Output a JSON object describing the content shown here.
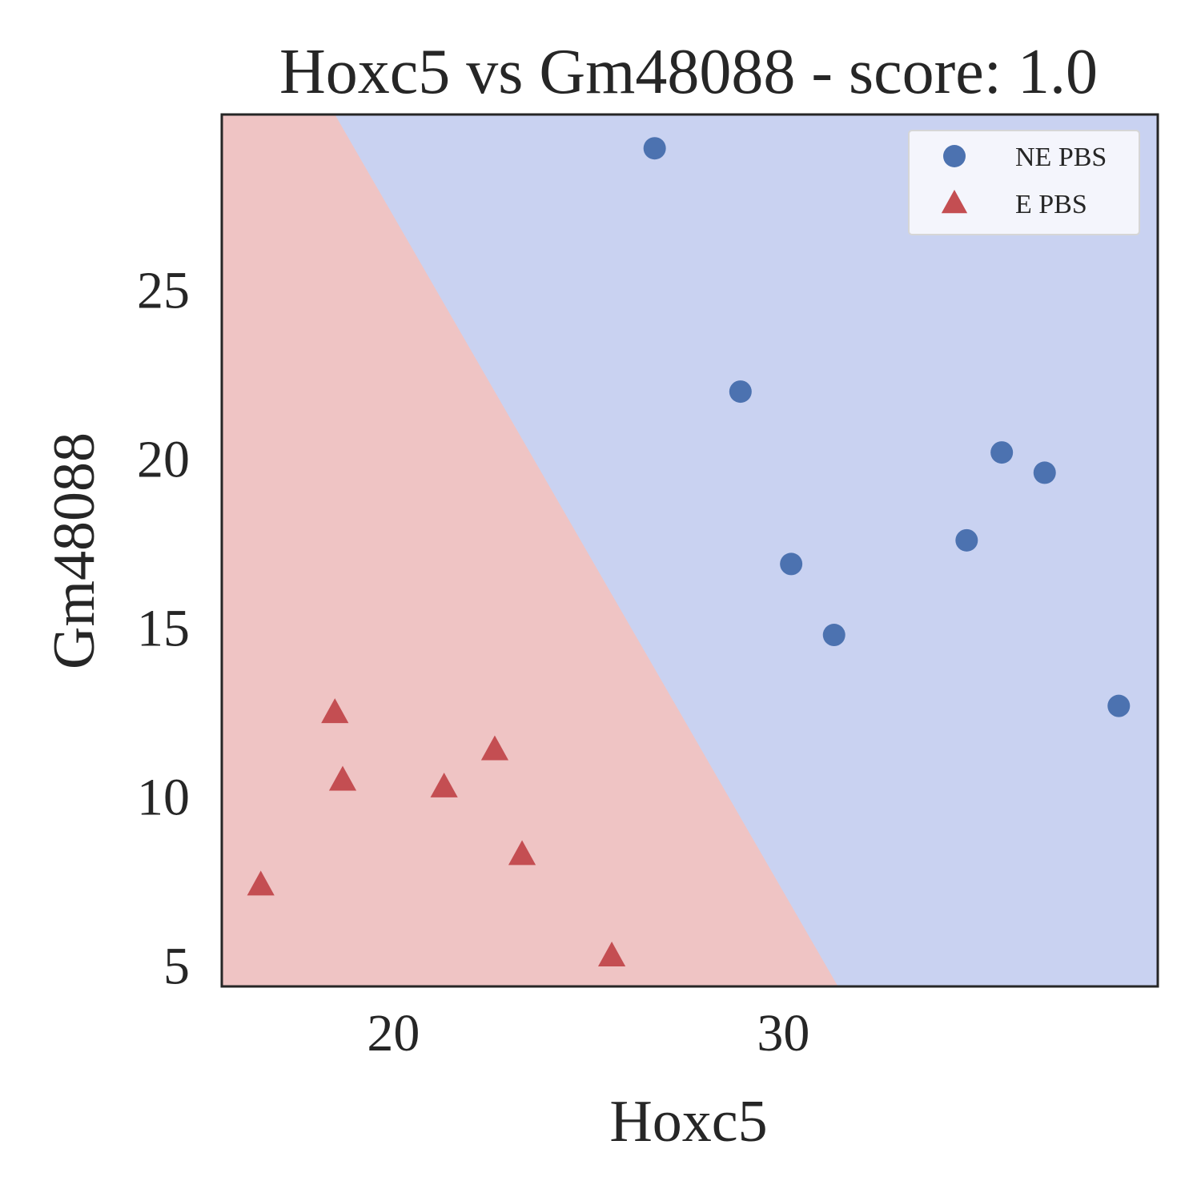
{
  "chart_data": {
    "type": "scatter",
    "title": "Hoxc5 vs Gm48088 - score: 1.0",
    "xlabel": "Hoxc5",
    "ylabel": "Gm48088",
    "xlim": [
      15.6,
      39.6
    ],
    "ylim": [
      4.4,
      30.2
    ],
    "xticks": [
      20,
      30
    ],
    "yticks": [
      5,
      10,
      15,
      20,
      25
    ],
    "grid": false,
    "legend_position": "top-right",
    "decision_boundary": {
      "line": [
        [
          18.5,
          30.2
        ],
        [
          31.4,
          4.4
        ]
      ],
      "left_region_class": "E PBS",
      "right_region_class": "NE PBS",
      "left_region_color": "#efc4c4",
      "right_region_color": "#c9d2f1"
    },
    "series": [
      {
        "name": "NE PBS",
        "marker": "circle",
        "color": "#4c72b0",
        "points": [
          [
            26.7,
            29.2
          ],
          [
            28.9,
            22.0
          ],
          [
            30.2,
            16.9
          ],
          [
            31.3,
            14.8
          ],
          [
            34.7,
            17.6
          ],
          [
            35.6,
            20.2
          ],
          [
            36.7,
            19.6
          ],
          [
            38.6,
            12.7
          ]
        ]
      },
      {
        "name": "E PBS",
        "marker": "triangle",
        "color": "#c44e52",
        "points": [
          [
            16.6,
            7.4
          ],
          [
            18.5,
            12.5
          ],
          [
            18.7,
            10.5
          ],
          [
            21.3,
            10.3
          ],
          [
            22.6,
            11.4
          ],
          [
            23.3,
            8.3
          ],
          [
            25.6,
            5.3
          ]
        ]
      }
    ]
  }
}
